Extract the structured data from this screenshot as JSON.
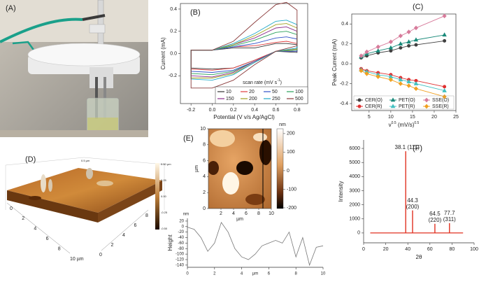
{
  "photo": {
    "panel_label": "(A)"
  },
  "afm_3d": {
    "panel_label": "(D)",
    "axis1_ticks": [
      "0",
      "2",
      "4",
      "6",
      "8",
      "10 µm"
    ],
    "axis2_ticks": [
      "0",
      "2",
      "4",
      "6",
      "8"
    ],
    "top_label": "0.5 µm",
    "colorbar_ticks": [
      "0.50 µm",
      "0.25",
      "0.00",
      "-0.25",
      "-0.50"
    ]
  },
  "afm_map": {
    "panel_label": "(E)",
    "x_label": "µm",
    "y_label": "µm",
    "xlim": [
      0,
      10
    ],
    "ylim": [
      0,
      10
    ],
    "xticks": [
      2,
      4,
      6,
      8,
      10
    ],
    "yticks": [
      0,
      2,
      4,
      6,
      8,
      10
    ],
    "colorbar_unit": "nm",
    "clim": [
      -204,
      226
    ],
    "colorbar_ticks": [
      200,
      100,
      0,
      -100,
      -200
    ]
  },
  "chart_data": [
    {
      "type": "cv",
      "panel_label": "(B)",
      "x_label": "Potential (V v/s Ag/AgCl)",
      "y_label": "Current (mA)",
      "legend_title": [
        "scan rate (mV s",
        "-1",
        ")"
      ],
      "x": [
        -0.2,
        0,
        0.2,
        0.4,
        0.6,
        0.7,
        0.8,
        0.8,
        0.6,
        0.4,
        0.2,
        0,
        -0.2
      ],
      "series": [
        {
          "name": "10",
          "color": "#333333",
          "values": [
            0.03,
            0.03,
            0.05,
            0.05,
            0.09,
            0.09,
            0.08,
            0.01,
            0.02,
            -0.06,
            -0.13,
            -0.14,
            -0.13
          ]
        },
        {
          "name": "20",
          "color": "#e03c3c",
          "values": [
            0.03,
            0.03,
            0.06,
            0.07,
            0.1,
            0.11,
            0.09,
            0.02,
            0.02,
            -0.06,
            -0.13,
            -0.15,
            -0.14
          ]
        },
        {
          "name": "50",
          "color": "#3050c8",
          "values": [
            0.03,
            0.03,
            0.06,
            0.09,
            0.14,
            0.15,
            0.13,
            0.02,
            0.02,
            -0.07,
            -0.15,
            -0.17,
            -0.16
          ]
        },
        {
          "name": "100",
          "color": "#2aa05a",
          "values": [
            0.03,
            0.03,
            0.07,
            0.12,
            0.19,
            0.2,
            0.17,
            0.03,
            0.02,
            -0.07,
            -0.16,
            -0.19,
            -0.18
          ]
        },
        {
          "name": "150",
          "color": "#8a2a8a",
          "values": [
            0.03,
            0.03,
            0.08,
            0.14,
            0.23,
            0.24,
            0.2,
            0.04,
            0.02,
            -0.07,
            -0.17,
            -0.21,
            -0.2
          ]
        },
        {
          "name": "200",
          "color": "#a0a020",
          "values": [
            0.03,
            0.03,
            0.08,
            0.16,
            0.26,
            0.27,
            0.23,
            0.04,
            0.02,
            -0.08,
            -0.18,
            -0.22,
            -0.22
          ]
        },
        {
          "name": "250",
          "color": "#20a8c8",
          "values": [
            0.03,
            0.03,
            0.09,
            0.18,
            0.29,
            0.3,
            0.26,
            0.05,
            0.02,
            -0.08,
            -0.19,
            -0.24,
            -0.23
          ]
        },
        {
          "name": "500",
          "color": "#8a3a3a",
          "values": [
            0.03,
            0.03,
            0.11,
            0.28,
            0.44,
            0.46,
            0.39,
            0.07,
            0.02,
            -0.1,
            -0.24,
            -0.31,
            -0.31
          ]
        }
      ],
      "xlim": [
        -0.3,
        0.9
      ],
      "ylim": [
        -0.45,
        0.45
      ],
      "xticks": [
        -0.2,
        {
          "value": 0,
          "label": "0.0"
        },
        0.2,
        0.4,
        0.6,
        0.8
      ],
      "yticks": [
        -0.2,
        {
          "value": 0,
          "label": "0.0"
        },
        0.2,
        0.4
      ]
    },
    {
      "type": "line",
      "panel_label": "(C)",
      "x_label": [
        "v",
        "0.5",
        " (mV/s)",
        "0.5"
      ],
      "y_label": "Peak Current (mA)",
      "x": [
        3.16,
        4.47,
        7.07,
        10,
        12.25,
        14.14,
        15.81,
        22.36
      ],
      "series": [
        {
          "name": "CER(O)",
          "color": "#404040",
          "marker": "o",
          "values": [
            0.06,
            0.08,
            0.11,
            0.13,
            0.16,
            0.18,
            0.19,
            0.23
          ]
        },
        {
          "name": "PET(O)",
          "color": "#1a8a7a",
          "marker": "^",
          "values": [
            0.07,
            0.1,
            0.13,
            0.16,
            0.2,
            0.22,
            0.24,
            0.29
          ]
        },
        {
          "name": "SSE(O)",
          "color": "#d77a9a",
          "marker": "d",
          "values": [
            0.08,
            0.12,
            0.17,
            0.22,
            0.28,
            0.32,
            0.36,
            0.48
          ]
        },
        {
          "name": "CER(R)",
          "color": "#e03030",
          "marker": "o",
          "values": [
            -0.05,
            -0.07,
            -0.09,
            -0.11,
            -0.14,
            -0.16,
            -0.17,
            -0.23
          ]
        },
        {
          "name": "PET(R)",
          "color": "#40c0c0",
          "marker": "^",
          "values": [
            -0.06,
            -0.08,
            -0.11,
            -0.13,
            -0.16,
            -0.18,
            -0.2,
            -0.27
          ]
        },
        {
          "name": "SSE(R)",
          "color": "#f0a020",
          "marker": "d",
          "values": [
            -0.07,
            -0.1,
            -0.13,
            -0.16,
            -0.2,
            -0.22,
            -0.25,
            -0.33
          ]
        }
      ],
      "xlim": [
        1,
        25
      ],
      "ylim": [
        -0.47,
        0.5
      ],
      "xticks": [
        5,
        10,
        15,
        20,
        25
      ],
      "yticks": [
        -0.4,
        -0.2,
        {
          "value": 0,
          "label": "0.0"
        },
        0.2,
        0.4
      ]
    },
    {
      "type": "line",
      "x_label": "µm",
      "y_label": "Height",
      "y_unit": "nm",
      "color": "#777777",
      "x": [
        0,
        0.5,
        1,
        1.5,
        2,
        2.5,
        3,
        3.5,
        4,
        4.5,
        5,
        5.5,
        6,
        6.5,
        7,
        7.5,
        8,
        8.5,
        9,
        9.5,
        10
      ],
      "values": [
        -2,
        -10,
        -40,
        -90,
        -60,
        15,
        -20,
        -80,
        -110,
        -120,
        -100,
        -70,
        -60,
        -50,
        -60,
        -20,
        -110,
        -40,
        -140,
        -75,
        -70
      ],
      "xlim": [
        0,
        10
      ],
      "ylim": [
        -148,
        30
      ],
      "xticks": [
        0,
        2,
        4,
        6,
        8,
        10
      ],
      "yticks": [
        20,
        0,
        -20,
        -40,
        -60,
        -80,
        -100,
        -120,
        -140
      ]
    },
    {
      "type": "stem",
      "panel_label": "(F)",
      "x_label": "2θ",
      "y_label": "Intensity",
      "color": "#e03020",
      "x": [
        38.1,
        44.3,
        64.5,
        77.7
      ],
      "values": [
        5800,
        1600,
        650,
        700
      ],
      "annotations": [
        [
          "38.1 (111)"
        ],
        [
          "44.3",
          "(200)"
        ],
        [
          "64.5",
          "(220)"
        ],
        [
          "77.7",
          "(311)"
        ]
      ],
      "xlim": [
        0,
        100
      ],
      "ylim": [
        -700,
        6600
      ],
      "xticks": [
        0,
        20,
        40,
        60,
        80,
        100
      ],
      "yticks": [
        0,
        1000,
        2000,
        3000,
        4000,
        5000,
        6000
      ]
    }
  ]
}
